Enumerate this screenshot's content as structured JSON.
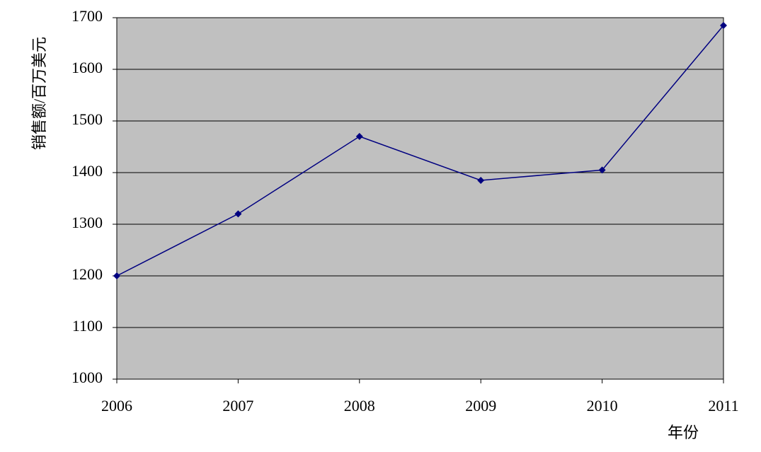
{
  "chart_data": {
    "type": "line",
    "x_label": "年份",
    "y_label": "销售额/百万美元",
    "categories": [
      "2006",
      "2007",
      "2008",
      "2009",
      "2010",
      "2011"
    ],
    "series": [
      {
        "name": "销售额",
        "color": "#000080",
        "values": [
          1200,
          1320,
          1470,
          1385,
          1405,
          1685
        ]
      }
    ],
    "ylim": [
      1000,
      1700
    ],
    "yticks": [
      1000,
      1100,
      1200,
      1300,
      1400,
      1500,
      1600,
      1700
    ],
    "grid": true,
    "plot_background": "#c0c0c0"
  }
}
